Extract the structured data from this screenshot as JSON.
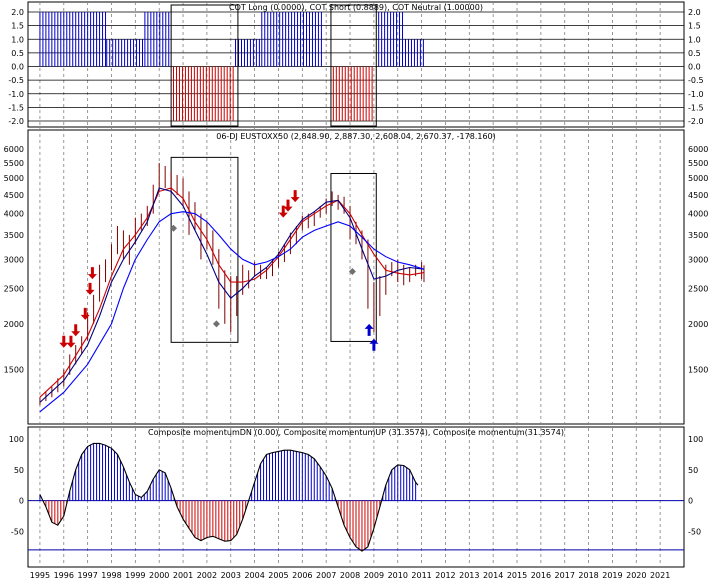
{
  "chart_data": [
    {
      "type": "bar",
      "title": "COT Long (0.0000), COT Short (0.8889), COT Neutral (1.00000)",
      "ylim": [
        -2.0,
        2.0
      ],
      "y_ticks": [
        "2.0",
        "1.5",
        "1.0",
        "0.5",
        "0.0",
        "-0.5",
        "-1.0",
        "-1.5",
        "-2.0"
      ],
      "series": [
        {
          "name": "COT Long",
          "color": "#0000cc",
          "ranges": [
            [
              1995.0,
              1997.8,
              2.0
            ],
            [
              1997.8,
              1999.4,
              1.0
            ],
            [
              1999.4,
              2000.5,
              2.0
            ],
            [
              2003.2,
              2004.3,
              1.0
            ],
            [
              2004.3,
              2006.8,
              2.0
            ],
            [
              2009.2,
              2010.2,
              2.0
            ],
            [
              2010.2,
              2011.1,
              1.0
            ]
          ]
        },
        {
          "name": "COT Short",
          "color": "#cc0000",
          "ranges": [
            [
              2000.6,
              2003.1,
              -2.0
            ],
            [
              2007.3,
              2009.0,
              -2.0
            ]
          ]
        }
      ],
      "boxes": [
        [
          2000.5,
          2003.3
        ],
        [
          2007.2,
          2009.1
        ]
      ]
    },
    {
      "type": "line",
      "title": "06-DJ EUSTOXX50 (2,848.90, 2,887.30, 2,608.04, 2,670.37, -178.160)",
      "scale": "log",
      "ylim": [
        1200,
        6200
      ],
      "y_ticks": [
        "6000",
        "5500",
        "5000",
        "4500",
        "4000",
        "3500",
        "3000",
        "2500",
        "2000",
        "1500"
      ],
      "price_bars": [
        [
          1995.0,
          1200,
          1260
        ],
        [
          1995.25,
          1230,
          1300
        ],
        [
          1995.5,
          1260,
          1350
        ],
        [
          1995.75,
          1300,
          1420
        ],
        [
          1996.0,
          1350,
          1500
        ],
        [
          1996.25,
          1450,
          1650
        ],
        [
          1996.5,
          1550,
          1750
        ],
        [
          1996.75,
          1650,
          1850
        ],
        [
          1997.0,
          1800,
          2150
        ],
        [
          1997.25,
          2000,
          2400
        ],
        [
          1997.5,
          2300,
          2900
        ],
        [
          1997.75,
          2600,
          3000
        ],
        [
          1998.0,
          2800,
          3300
        ],
        [
          1998.25,
          3100,
          3700
        ],
        [
          1998.5,
          3000,
          3600
        ],
        [
          1998.75,
          2900,
          3500
        ],
        [
          1999.0,
          3300,
          3900
        ],
        [
          1999.25,
          3600,
          4000
        ],
        [
          1999.5,
          3700,
          4200
        ],
        [
          1999.75,
          4000,
          4800
        ],
        [
          2000.0,
          4600,
          5500
        ],
        [
          2000.25,
          4700,
          5400
        ],
        [
          2000.5,
          4600,
          5200
        ],
        [
          2000.75,
          4500,
          5100
        ],
        [
          2001.0,
          4200,
          5000
        ],
        [
          2001.25,
          3500,
          4600
        ],
        [
          2001.5,
          3600,
          4300
        ],
        [
          2001.75,
          3000,
          4000
        ],
        [
          2002.0,
          3200,
          3800
        ],
        [
          2002.25,
          2900,
          3600
        ],
        [
          2002.5,
          2200,
          3200
        ],
        [
          2002.75,
          2000,
          2800
        ],
        [
          2003.0,
          1900,
          2700
        ],
        [
          2003.25,
          2100,
          2700
        ],
        [
          2003.5,
          2400,
          2900
        ],
        [
          2003.75,
          2500,
          2800
        ],
        [
          2004.0,
          2700,
          2950
        ],
        [
          2004.25,
          2650,
          2900
        ],
        [
          2004.5,
          2650,
          2850
        ],
        [
          2004.75,
          2700,
          3000
        ],
        [
          2005.0,
          2850,
          3150
        ],
        [
          2005.25,
          2950,
          3300
        ],
        [
          2005.5,
          3100,
          3550
        ],
        [
          2005.75,
          3300,
          3700
        ],
        [
          2006.0,
          3600,
          3950
        ],
        [
          2006.25,
          3650,
          4000
        ],
        [
          2006.5,
          3700,
          4050
        ],
        [
          2006.75,
          3900,
          4200
        ],
        [
          2007.0,
          4000,
          4400
        ],
        [
          2007.25,
          4200,
          4600
        ],
        [
          2007.5,
          4100,
          4500
        ],
        [
          2007.75,
          4000,
          4450
        ],
        [
          2008.0,
          3400,
          4200
        ],
        [
          2008.25,
          3300,
          3800
        ],
        [
          2008.5,
          3000,
          3600
        ],
        [
          2008.75,
          2200,
          3400
        ],
        [
          2009.0,
          1900,
          2600
        ],
        [
          2009.25,
          2100,
          2700
        ],
        [
          2009.5,
          2400,
          2900
        ],
        [
          2009.75,
          2700,
          2950
        ],
        [
          2010.0,
          2600,
          3000
        ],
        [
          2010.25,
          2550,
          2900
        ],
        [
          2010.5,
          2600,
          2850
        ],
        [
          2010.75,
          2700,
          2900
        ],
        [
          2011.0,
          2650,
          2950
        ],
        [
          2011.1,
          2600,
          2890
        ]
      ],
      "series": [
        {
          "name": "red average",
          "color": "#cc0000",
          "points": [
            [
              1995.0,
              1260
            ],
            [
              1996.0,
              1450
            ],
            [
              1997.0,
              1850
            ],
            [
              1997.5,
              2200
            ],
            [
              1998.0,
              2700
            ],
            [
              1998.5,
              3200
            ],
            [
              1999.0,
              3500
            ],
            [
              1999.5,
              3900
            ],
            [
              2000.0,
              4600
            ],
            [
              2000.5,
              4700
            ],
            [
              2001.0,
              4400
            ],
            [
              2001.5,
              3800
            ],
            [
              2002.0,
              3400
            ],
            [
              2002.5,
              2900
            ],
            [
              2003.0,
              2600
            ],
            [
              2003.5,
              2600
            ],
            [
              2004.0,
              2650
            ],
            [
              2004.5,
              2800
            ],
            [
              2005.0,
              3050
            ],
            [
              2005.5,
              3400
            ],
            [
              2006.0,
              3800
            ],
            [
              2006.5,
              4000
            ],
            [
              2007.0,
              4200
            ],
            [
              2007.5,
              4350
            ],
            [
              2008.0,
              4000
            ],
            [
              2008.5,
              3500
            ],
            [
              2009.0,
              3100
            ],
            [
              2009.5,
              2800
            ],
            [
              2010.0,
              2750
            ],
            [
              2010.5,
              2720
            ],
            [
              2011.1,
              2760
            ]
          ]
        },
        {
          "name": "dark blue average",
          "color": "#000080",
          "points": [
            [
              1995.0,
              1220
            ],
            [
              1996.0,
              1400
            ],
            [
              1997.0,
              1750
            ],
            [
              1997.5,
              2100
            ],
            [
              1998.0,
              2600
            ],
            [
              1998.5,
              3000
            ],
            [
              1999.0,
              3350
            ],
            [
              1999.5,
              3800
            ],
            [
              2000.0,
              4700
            ],
            [
              2000.5,
              4600
            ],
            [
              2001.0,
              4200
            ],
            [
              2001.5,
              3600
            ],
            [
              2002.0,
              3100
            ],
            [
              2002.5,
              2600
            ],
            [
              2003.0,
              2350
            ],
            [
              2003.5,
              2500
            ],
            [
              2004.0,
              2700
            ],
            [
              2004.5,
              2850
            ],
            [
              2005.0,
              3100
            ],
            [
              2005.5,
              3500
            ],
            [
              2006.0,
              3850
            ],
            [
              2006.5,
              4050
            ],
            [
              2007.0,
              4300
            ],
            [
              2007.5,
              4350
            ],
            [
              2008.0,
              3900
            ],
            [
              2008.5,
              3200
            ],
            [
              2009.0,
              2650
            ],
            [
              2009.5,
              2700
            ],
            [
              2010.0,
              2800
            ],
            [
              2010.5,
              2850
            ],
            [
              2011.1,
              2820
            ]
          ]
        },
        {
          "name": "blue average",
          "color": "#0000ff",
          "points": [
            [
              1995.0,
              1150
            ],
            [
              1996.0,
              1300
            ],
            [
              1997.0,
              1550
            ],
            [
              1998.0,
              2000
            ],
            [
              1998.5,
              2500
            ],
            [
              1999.0,
              3000
            ],
            [
              1999.5,
              3400
            ],
            [
              2000.0,
              3800
            ],
            [
              2000.5,
              4000
            ],
            [
              2001.0,
              4050
            ],
            [
              2001.5,
              4000
            ],
            [
              2002.0,
              3800
            ],
            [
              2002.5,
              3500
            ],
            [
              2003.0,
              3200
            ],
            [
              2003.5,
              3000
            ],
            [
              2004.0,
              2900
            ],
            [
              2004.5,
              2950
            ],
            [
              2005.0,
              3050
            ],
            [
              2005.5,
              3200
            ],
            [
              2006.0,
              3450
            ],
            [
              2006.5,
              3600
            ],
            [
              2007.0,
              3700
            ],
            [
              2007.5,
              3800
            ],
            [
              2008.0,
              3700
            ],
            [
              2008.5,
              3450
            ],
            [
              2009.0,
              3200
            ],
            [
              2009.5,
              3050
            ],
            [
              2010.0,
              2950
            ],
            [
              2010.5,
              2900
            ],
            [
              2011.1,
              2820
            ]
          ]
        }
      ],
      "sell_arrows": [
        [
          1996.0,
          1720
        ],
        [
          1996.3,
          1720
        ],
        [
          1996.5,
          1850
        ],
        [
          1996.9,
          2050
        ],
        [
          1997.1,
          2400
        ],
        [
          1997.2,
          2650
        ],
        [
          2005.2,
          3900
        ],
        [
          2005.4,
          4050
        ],
        [
          2005.7,
          4300
        ]
      ],
      "buy_arrows": [
        [
          2008.8,
          2000
        ],
        [
          2009.0,
          1820
        ]
      ],
      "diamonds": [
        [
          2000.6,
          3650
        ],
        [
          2002.4,
          2000
        ],
        [
          2008.1,
          2780
        ]
      ],
      "boxes": [
        [
          2000.5,
          2003.3,
          1780,
          5700
        ],
        [
          2007.2,
          2009.1,
          1790,
          5150
        ]
      ]
    },
    {
      "type": "bar",
      "title": "Composite momentumDN (0.00), Composite momentumUP (31.3574), Composite momentum(31.3574)",
      "ylim": [
        -90,
        105
      ],
      "y_ticks": [
        "100",
        "50",
        "0",
        "-50"
      ],
      "composite": [
        [
          1995.0,
          10
        ],
        [
          1995.25,
          -10
        ],
        [
          1995.5,
          -35
        ],
        [
          1995.75,
          -40
        ],
        [
          1996.0,
          -25
        ],
        [
          1996.25,
          15
        ],
        [
          1996.5,
          50
        ],
        [
          1996.75,
          75
        ],
        [
          1997.0,
          88
        ],
        [
          1997.25,
          93
        ],
        [
          1997.5,
          93
        ],
        [
          1997.75,
          90
        ],
        [
          1998.0,
          85
        ],
        [
          1998.25,
          75
        ],
        [
          1998.5,
          55
        ],
        [
          1998.75,
          30
        ],
        [
          1999.0,
          10
        ],
        [
          1999.25,
          5
        ],
        [
          1999.5,
          15
        ],
        [
          1999.75,
          35
        ],
        [
          2000.0,
          50
        ],
        [
          2000.25,
          45
        ],
        [
          2000.5,
          20
        ],
        [
          2000.75,
          -10
        ],
        [
          2001.0,
          -30
        ],
        [
          2001.25,
          -45
        ],
        [
          2001.5,
          -60
        ],
        [
          2001.75,
          -65
        ],
        [
          2002.0,
          -60
        ],
        [
          2002.25,
          -58
        ],
        [
          2002.5,
          -62
        ],
        [
          2002.75,
          -66
        ],
        [
          2003.0,
          -65
        ],
        [
          2003.25,
          -55
        ],
        [
          2003.5,
          -30
        ],
        [
          2003.75,
          0
        ],
        [
          2004.0,
          30
        ],
        [
          2004.25,
          60
        ],
        [
          2004.5,
          75
        ],
        [
          2004.75,
          78
        ],
        [
          2005.0,
          80
        ],
        [
          2005.25,
          82
        ],
        [
          2005.5,
          82
        ],
        [
          2005.75,
          80
        ],
        [
          2006.0,
          78
        ],
        [
          2006.25,
          75
        ],
        [
          2006.5,
          68
        ],
        [
          2006.75,
          55
        ],
        [
          2007.0,
          40
        ],
        [
          2007.25,
          20
        ],
        [
          2007.5,
          -10
        ],
        [
          2007.75,
          -40
        ],
        [
          2008.0,
          -60
        ],
        [
          2008.25,
          -75
        ],
        [
          2008.5,
          -82
        ],
        [
          2008.75,
          -75
        ],
        [
          2009.0,
          -45
        ],
        [
          2009.25,
          -10
        ],
        [
          2009.5,
          25
        ],
        [
          2009.75,
          50
        ],
        [
          2010.0,
          58
        ],
        [
          2010.25,
          57
        ],
        [
          2010.5,
          50
        ],
        [
          2010.75,
          30
        ],
        [
          2010.85,
          25
        ]
      ],
      "ref_line": -80
    }
  ],
  "x_axis": {
    "labels": [
      "1995",
      "1996",
      "1997",
      "1998",
      "1999",
      "2000",
      "2001",
      "2002",
      "2003",
      "2004",
      "2005",
      "2006",
      "2007",
      "2008",
      "2009",
      "2010",
      "2011",
      "2012",
      "2013",
      "2014",
      "2015",
      "2016",
      "2017",
      "2018",
      "2019",
      "2020",
      "2021"
    ],
    "range": [
      1994.5,
      2022.0
    ]
  },
  "colors": {
    "up": "#0000cc",
    "down": "#cc0000",
    "grid": "#808080",
    "marker": "#707070",
    "ref_line": "#0000aa"
  }
}
